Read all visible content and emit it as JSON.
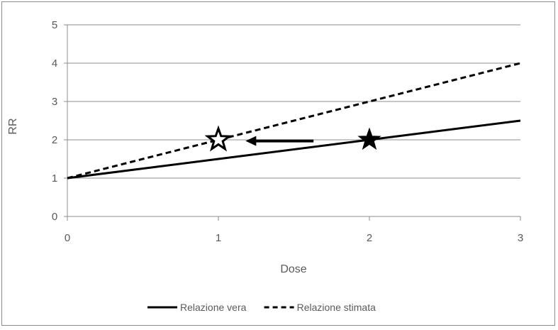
{
  "chart_data": {
    "type": "line",
    "title": "",
    "xlabel": "Dose",
    "ylabel": "RR",
    "x": [
      0,
      1,
      2,
      3
    ],
    "xlim": [
      0,
      3
    ],
    "ylim": [
      0,
      5
    ],
    "x_ticks": [
      "0",
      "1",
      "2",
      "3"
    ],
    "y_ticks": [
      "0",
      "1",
      "2",
      "3",
      "4",
      "5"
    ],
    "grid": "horizontal",
    "legend_position": "bottom",
    "series": [
      {
        "name": "Relazione vera",
        "style": "solid",
        "color": "#000000",
        "values": [
          1,
          1.5,
          2,
          2.5
        ]
      },
      {
        "name": "Relazione stimata",
        "style": "dashed",
        "color": "#000000",
        "values": [
          1,
          2,
          3,
          4
        ]
      }
    ],
    "annotations": [
      {
        "type": "star-filled",
        "x": 2,
        "y": 2
      },
      {
        "type": "star-outline",
        "x": 1,
        "y": 2
      },
      {
        "type": "arrow",
        "from": [
          1.63,
          1.97
        ],
        "to": [
          1.18,
          1.97
        ]
      }
    ]
  }
}
